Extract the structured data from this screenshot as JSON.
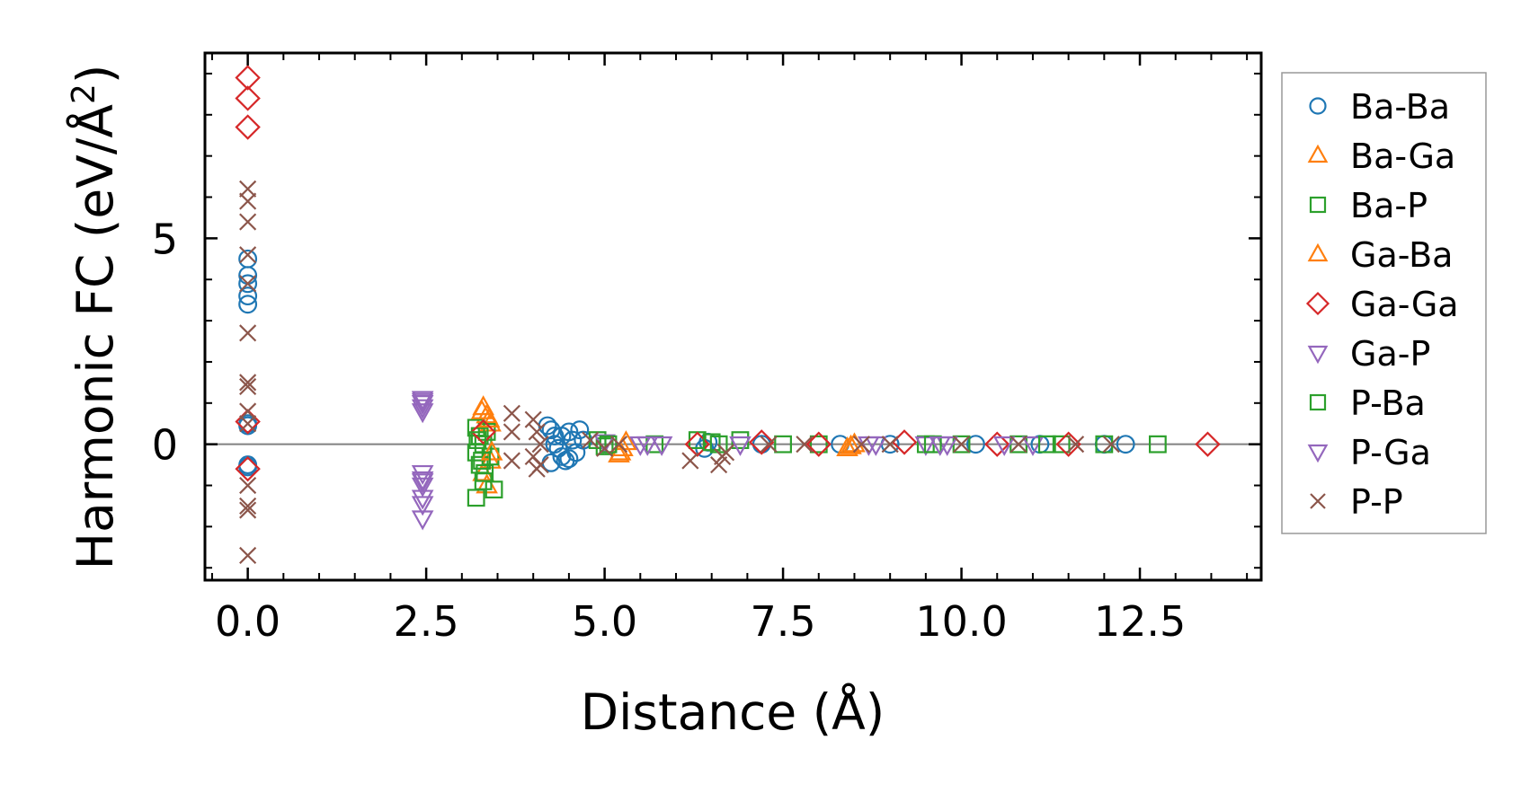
{
  "chart_data": {
    "type": "scatter",
    "title": "",
    "xlabel": "Distance (Å)",
    "ylabel_main": "Harmonic FC (eV/Å",
    "ylabel_sup": "2",
    "ylabel_close": ")",
    "xlim": [
      -0.6,
      14.2
    ],
    "ylim": [
      -3.3,
      9.5
    ],
    "xticks": [
      0.0,
      2.5,
      5.0,
      7.5,
      10.0,
      12.5
    ],
    "xtick_labels": [
      "0.0",
      "2.5",
      "5.0",
      "7.5",
      "10.0",
      "12.5"
    ],
    "yticks": [
      0,
      5
    ],
    "ytick_labels": [
      "0",
      "5"
    ],
    "zero_line": 0,
    "legend_position": "outside-right",
    "series": [
      {
        "name": "Ba-Ba",
        "marker": "circle",
        "color": "#1f77b4",
        "points": [
          [
            0,
            4.5
          ],
          [
            0,
            4.1
          ],
          [
            0,
            3.9
          ],
          [
            0,
            3.6
          ],
          [
            0,
            3.4
          ],
          [
            0,
            0.5
          ],
          [
            0,
            0.45
          ],
          [
            0,
            -0.5
          ],
          [
            0,
            -0.55
          ],
          [
            4.2,
            0.45
          ],
          [
            4.25,
            0.35
          ],
          [
            4.3,
            0.2
          ],
          [
            4.35,
            -0.1
          ],
          [
            4.4,
            -0.3
          ],
          [
            4.45,
            -0.4
          ],
          [
            4.5,
            0.3
          ],
          [
            4.55,
            0.1
          ],
          [
            4.6,
            -0.2
          ],
          [
            4.65,
            0.35
          ],
          [
            4.7,
            0.1
          ],
          [
            4.25,
            -0.45
          ],
          [
            4.3,
            0.0
          ],
          [
            4.4,
            0.2
          ],
          [
            4.5,
            -0.35
          ],
          [
            6.4,
            -0.1
          ],
          [
            6.45,
            0.05
          ],
          [
            7.2,
            0.0
          ],
          [
            8.3,
            0.0
          ],
          [
            9.0,
            0.0
          ],
          [
            10.2,
            0.0
          ],
          [
            11.1,
            0.0
          ],
          [
            12.0,
            0.0
          ],
          [
            12.3,
            0.0
          ]
        ]
      },
      {
        "name": "Ba-Ga",
        "marker": "triangle-up",
        "color": "#ff7f0e",
        "points": [
          [
            3.3,
            0.9
          ],
          [
            3.35,
            0.7
          ],
          [
            3.4,
            0.5
          ],
          [
            3.3,
            -0.7
          ],
          [
            3.35,
            -1.0
          ],
          [
            3.4,
            -0.4
          ],
          [
            5.2,
            -0.25
          ],
          [
            5.25,
            -0.1
          ],
          [
            5.3,
            0.05
          ],
          [
            8.4,
            -0.1
          ],
          [
            8.5,
            0.0
          ]
        ]
      },
      {
        "name": "Ba-P",
        "marker": "square",
        "color": "#2ca02c",
        "points": [
          [
            3.2,
            0.4
          ],
          [
            3.25,
            0.2
          ],
          [
            3.3,
            0.0
          ],
          [
            3.2,
            -0.2
          ],
          [
            3.25,
            -0.5
          ],
          [
            3.3,
            -0.9
          ],
          [
            3.2,
            -1.3
          ],
          [
            3.35,
            0.3
          ],
          [
            3.4,
            -0.3
          ],
          [
            3.45,
            -1.1
          ],
          [
            4.9,
            0.1
          ],
          [
            5.0,
            -0.05
          ],
          [
            5.7,
            0.0
          ],
          [
            6.3,
            0.1
          ],
          [
            6.6,
            0.0
          ],
          [
            6.9,
            0.1
          ],
          [
            7.5,
            0.0
          ],
          [
            8.0,
            0.0
          ],
          [
            9.5,
            0.0
          ],
          [
            10.0,
            0.0
          ],
          [
            10.8,
            0.0
          ],
          [
            11.4,
            0.0
          ],
          [
            12.0,
            0.0
          ],
          [
            12.75,
            0.0
          ]
        ]
      },
      {
        "name": "Ga-Ba",
        "marker": "triangle-up",
        "color": "#ff7f0e",
        "points": [
          [
            3.28,
            0.8
          ],
          [
            3.38,
            0.6
          ],
          [
            3.42,
            -0.2
          ],
          [
            5.22,
            -0.2
          ],
          [
            8.45,
            -0.05
          ]
        ]
      },
      {
        "name": "Ga-Ga",
        "marker": "diamond",
        "color": "#d62728",
        "points": [
          [
            0,
            8.9
          ],
          [
            0,
            8.4
          ],
          [
            0,
            7.7
          ],
          [
            0,
            0.55
          ],
          [
            0,
            -0.6
          ],
          [
            3.3,
            0.3
          ],
          [
            6.3,
            0.0
          ],
          [
            7.2,
            0.05
          ],
          [
            8.0,
            0.0
          ],
          [
            9.2,
            0.05
          ],
          [
            10.5,
            0.0
          ],
          [
            11.5,
            0.0
          ],
          [
            13.45,
            0.0
          ]
        ]
      },
      {
        "name": "Ga-P",
        "marker": "triangle-down",
        "color": "#9467bd",
        "points": [
          [
            2.45,
            1.1
          ],
          [
            2.45,
            1.0
          ],
          [
            2.45,
            0.9
          ],
          [
            2.45,
            0.8
          ],
          [
            2.45,
            -0.7
          ],
          [
            2.45,
            -0.9
          ],
          [
            2.45,
            -1.0
          ],
          [
            2.45,
            -1.3
          ],
          [
            2.45,
            -1.45
          ],
          [
            2.45,
            -1.8
          ],
          [
            5.0,
            0.05
          ],
          [
            5.5,
            0.0
          ],
          [
            5.8,
            0.0
          ],
          [
            6.9,
            0.0
          ],
          [
            8.7,
            0.0
          ],
          [
            9.5,
            0.0
          ],
          [
            9.8,
            0.0
          ],
          [
            10.6,
            0.0
          ],
          [
            11.0,
            0.0
          ]
        ]
      },
      {
        "name": "P-Ba",
        "marker": "square",
        "color": "#2ca02c",
        "points": [
          [
            3.22,
            0.1
          ],
          [
            3.28,
            -0.4
          ],
          [
            3.32,
            -0.7
          ],
          [
            5.05,
            0.0
          ],
          [
            6.5,
            0.05
          ],
          [
            9.6,
            0.0
          ],
          [
            11.2,
            0.0
          ]
        ]
      },
      {
        "name": "P-Ga",
        "marker": "triangle-down",
        "color": "#9467bd",
        "points": [
          [
            2.45,
            1.05
          ],
          [
            2.45,
            -0.85
          ],
          [
            5.6,
            0.0
          ],
          [
            8.8,
            0.0
          ],
          [
            9.7,
            0.0
          ]
        ]
      },
      {
        "name": "P-P",
        "marker": "x",
        "color": "#8c564b",
        "points": [
          [
            0,
            6.2
          ],
          [
            0,
            5.9
          ],
          [
            0,
            5.4
          ],
          [
            0,
            4.6
          ],
          [
            0,
            3.9
          ],
          [
            0,
            2.7
          ],
          [
            0,
            1.5
          ],
          [
            0,
            1.4
          ],
          [
            0,
            0.8
          ],
          [
            0,
            0.5
          ],
          [
            0,
            -1.0
          ],
          [
            0,
            -1.5
          ],
          [
            0,
            -1.6
          ],
          [
            0,
            -2.7
          ],
          [
            3.7,
            0.75
          ],
          [
            3.7,
            0.3
          ],
          [
            3.7,
            -0.4
          ],
          [
            4.0,
            0.6
          ],
          [
            4.05,
            0.3
          ],
          [
            4.1,
            0.0
          ],
          [
            4.0,
            -0.3
          ],
          [
            4.05,
            -0.6
          ],
          [
            4.1,
            -0.5
          ],
          [
            4.8,
            0.1
          ],
          [
            5.0,
            -0.1
          ],
          [
            5.2,
            0.0
          ],
          [
            6.2,
            -0.4
          ],
          [
            6.6,
            -0.5
          ],
          [
            6.65,
            -0.3
          ],
          [
            6.7,
            -0.2
          ],
          [
            7.3,
            0.0
          ],
          [
            7.8,
            0.0
          ],
          [
            8.6,
            0.0
          ],
          [
            9.0,
            0.0
          ],
          [
            10.0,
            0.0
          ],
          [
            10.8,
            0.0
          ],
          [
            11.6,
            0.0
          ],
          [
            12.1,
            0.0
          ]
        ]
      }
    ]
  }
}
